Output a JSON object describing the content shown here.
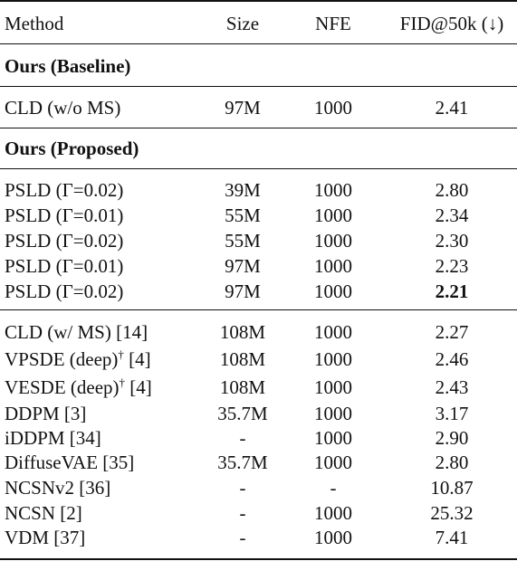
{
  "header": {
    "method": "Method",
    "size": "Size",
    "nfe": "NFE",
    "fid": "FID@50k (↓)"
  },
  "sections": [
    {
      "title": "Ours (Baseline)",
      "rows": [
        {
          "method": "CLD (w/o MS)",
          "size": "97M",
          "nfe": "1000",
          "fid": "2.41"
        }
      ]
    },
    {
      "title": "Ours (Proposed)",
      "rows": [
        {
          "method": "PSLD (Γ=0.02)",
          "size": "39M",
          "nfe": "1000",
          "fid": "2.80"
        },
        {
          "method": "PSLD (Γ=0.01)",
          "size": "55M",
          "nfe": "1000",
          "fid": "2.34"
        },
        {
          "method": "PSLD (Γ=0.02)",
          "size": "55M",
          "nfe": "1000",
          "fid": "2.30"
        },
        {
          "method": "PSLD (Γ=0.01)",
          "size": "97M",
          "nfe": "1000",
          "fid": "2.23"
        },
        {
          "method": "PSLD (Γ=0.02)",
          "size": "97M",
          "nfe": "1000",
          "fid": "2.21"
        }
      ]
    },
    {
      "title": "",
      "rows": [
        {
          "method": "CLD (w/ MS) [14]",
          "size": "108M",
          "nfe": "1000",
          "fid": "2.27"
        },
        {
          "method": "VPSDE (deep)",
          "method_sup": "†",
          "method_ref": " [4]",
          "size": "108M",
          "nfe": "1000",
          "fid": "2.46"
        },
        {
          "method": "VESDE (deep)",
          "method_sup": "†",
          "method_ref": " [4]",
          "size": "108M",
          "nfe": "1000",
          "fid": "2.43"
        },
        {
          "method": "DDPM [3]",
          "size": "35.7M",
          "nfe": "1000",
          "fid": "3.17"
        },
        {
          "method": "iDDPM [34]",
          "size": "-",
          "nfe": "1000",
          "fid": "2.90"
        },
        {
          "method": "DiffuseVAE [35]",
          "size": "35.7M",
          "nfe": "1000",
          "fid": "2.80"
        },
        {
          "method": "NCSNv2 [36]",
          "size": "-",
          "nfe": "-",
          "fid": "10.87"
        },
        {
          "method": "NCSN [2]",
          "size": "-",
          "nfe": "1000",
          "fid": "25.32"
        },
        {
          "method": "VDM [37]",
          "size": "-",
          "nfe": "1000",
          "fid": "7.41"
        }
      ]
    }
  ]
}
